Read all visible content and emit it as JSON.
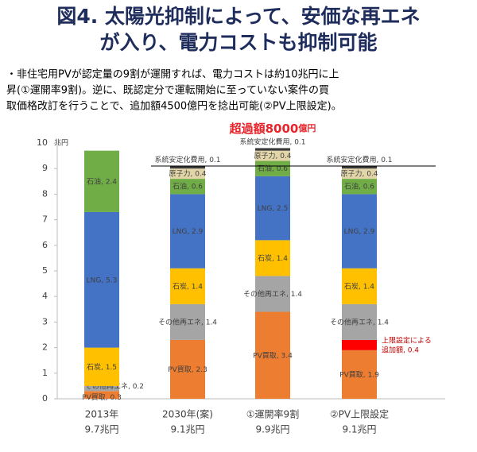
{
  "chart_data": {
    "type": "stacked-bar",
    "title_lines": [
      "図4. 太陽光抑制によって、安価な再エネ",
      "が入り、電力コストも抑制可能"
    ],
    "note_lines": [
      "・非住宅用PVが認定量の9割が運開すれば、電力コストは約10兆円に上",
      "昇(①運開率9割)。逆に、既認定分で運転開始に至っていない案件の買",
      "取価格改訂を行うことで、追加額4500億円を捻出可能(②PV上限設定)。"
    ],
    "annotation": {
      "text": "超過額8000",
      "unit": "億円"
    },
    "y_unit": "兆円",
    "categories": [
      "2013年",
      "2030年(案)",
      "①運開率9割",
      "②PV上限設定"
    ],
    "category_totals": [
      "9.7兆円",
      "9.1兆円",
      "9.9兆円",
      "9.1兆円"
    ],
    "ylim": [
      0,
      10
    ],
    "yticks": [
      0,
      1,
      2,
      3,
      4,
      5,
      6,
      7,
      8,
      9,
      10
    ],
    "reference_line": 9.1,
    "series": [
      {
        "name": "PV買取",
        "color": "#ED7D31",
        "values": [
          0.3,
          2.3,
          3.4,
          1.9
        ],
        "value_labels": [
          "PV買取, 0.3",
          "PV買取, 2.3",
          "PV買取, 3.4",
          "PV買取, 1.9"
        ]
      },
      {
        "name": "追加額",
        "color": "#FF0000",
        "values": [
          null,
          null,
          null,
          0.4
        ],
        "value_labels": [
          null,
          null,
          null,
          "上限設定による\n追加額, 0.4"
        ]
      },
      {
        "name": "その他再エネ",
        "color": "#A5A5A5",
        "values": [
          0.2,
          1.4,
          1.4,
          1.4
        ],
        "value_labels": [
          "その他再エネ, 0.2",
          "その他再エネ, 1.4",
          "その他再エネ, 1.4",
          "その他再エネ, 1.4"
        ]
      },
      {
        "name": "石炭",
        "color": "#FFC000",
        "values": [
          1.5,
          1.4,
          1.4,
          1.4
        ],
        "value_labels": [
          "石炭, 1.5",
          "石炭, 1.4",
          "石炭, 1.4",
          "石炭, 1.4"
        ]
      },
      {
        "name": "LNG",
        "color": "#4472C4",
        "values": [
          5.3,
          2.9,
          2.5,
          2.9
        ],
        "value_labels": [
          "LNG, 5.3",
          "LNG, 2.9",
          "LNG, 2.5",
          "LNG, 2.9"
        ]
      },
      {
        "name": "石油",
        "color": "#70AD47",
        "values": [
          2.4,
          0.6,
          0.6,
          0.6
        ],
        "value_labels": [
          "石油, 2.4",
          "石油, 0.6",
          "石油, 0.6",
          "石油, 0.6"
        ]
      },
      {
        "name": "原子力",
        "color": "#E2D6A8",
        "values": [
          null,
          0.4,
          0.4,
          0.4
        ],
        "value_labels": [
          null,
          "原子力, 0.4",
          "原子力, 0.4",
          "原子力, 0.4"
        ]
      },
      {
        "name": "系統安定化費用",
        "color": "#3A3A3A",
        "values": [
          null,
          0.1,
          0.1,
          0.1
        ],
        "value_labels": [
          null,
          "系統安定化費用, 0.1",
          "系統安定化費用, 0.1",
          "系統安定化費用, 0.1"
        ]
      }
    ]
  }
}
